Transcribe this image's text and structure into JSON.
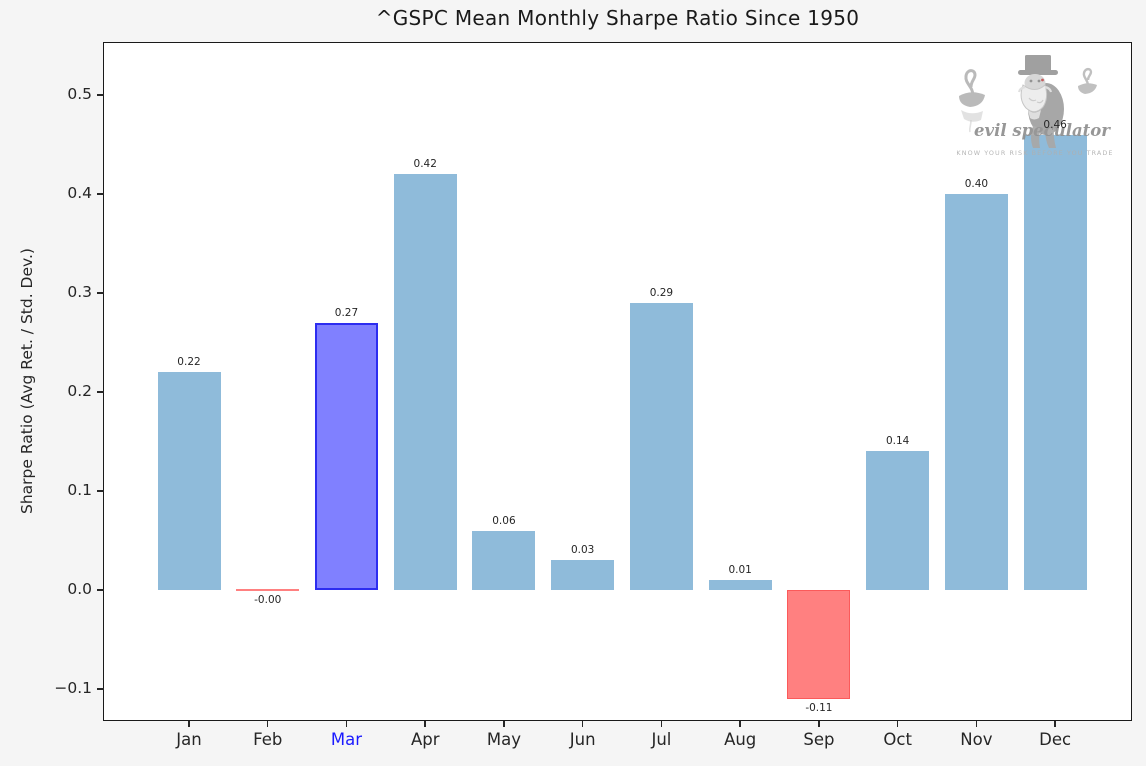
{
  "title": "^GSPC Mean Monthly Sharpe Ratio Since 1950",
  "watermark": {
    "brand": "evil speculator",
    "tagline": "KNOW YOUR RISK BEFORE YOU TRADE"
  },
  "chart_data": {
    "type": "bar",
    "title": "^GSPC Mean Monthly Sharpe Ratio Since 1950",
    "xlabel": "",
    "ylabel": "Sharpe Ratio (Avg Ret. / Std. Dev.)",
    "categories": [
      "Jan",
      "Feb",
      "Mar",
      "Apr",
      "May",
      "Jun",
      "Jul",
      "Aug",
      "Sep",
      "Oct",
      "Nov",
      "Dec"
    ],
    "values": [
      0.22,
      -0.0,
      0.27,
      0.42,
      0.06,
      0.03,
      0.29,
      0.01,
      -0.11,
      0.14,
      0.4,
      0.46
    ],
    "value_labels": [
      "0.22",
      "-0.00",
      "0.27",
      "0.42",
      "0.06",
      "0.03",
      "0.29",
      "0.01",
      "-0.11",
      "0.14",
      "0.40",
      "0.46"
    ],
    "highlighted_category": "Mar",
    "negative_categories": [
      "Feb",
      "Sep"
    ],
    "yticks": [
      0.5,
      0.4,
      0.3,
      0.2,
      0.1,
      0.0,
      -0.1
    ],
    "ytick_labels": [
      "0.5",
      "0.4",
      "0.3",
      "0.2",
      "0.1",
      "0.0",
      "−0.1"
    ],
    "ylim": [
      -0.1333,
      0.5525
    ],
    "grid": false,
    "legend": null,
    "colors": {
      "default_fill": "#8fbbda",
      "highlight_fill": "#8080ff",
      "highlight_edge": "#2d2df0",
      "negative_fill": "#ff8080",
      "negative_edge": "#fb5a5a",
      "highlight_tick_label": "#1a1aff",
      "tick_label": "#262626",
      "figure_background": "#f5f5f5",
      "plot_background": "#ffffff"
    }
  }
}
